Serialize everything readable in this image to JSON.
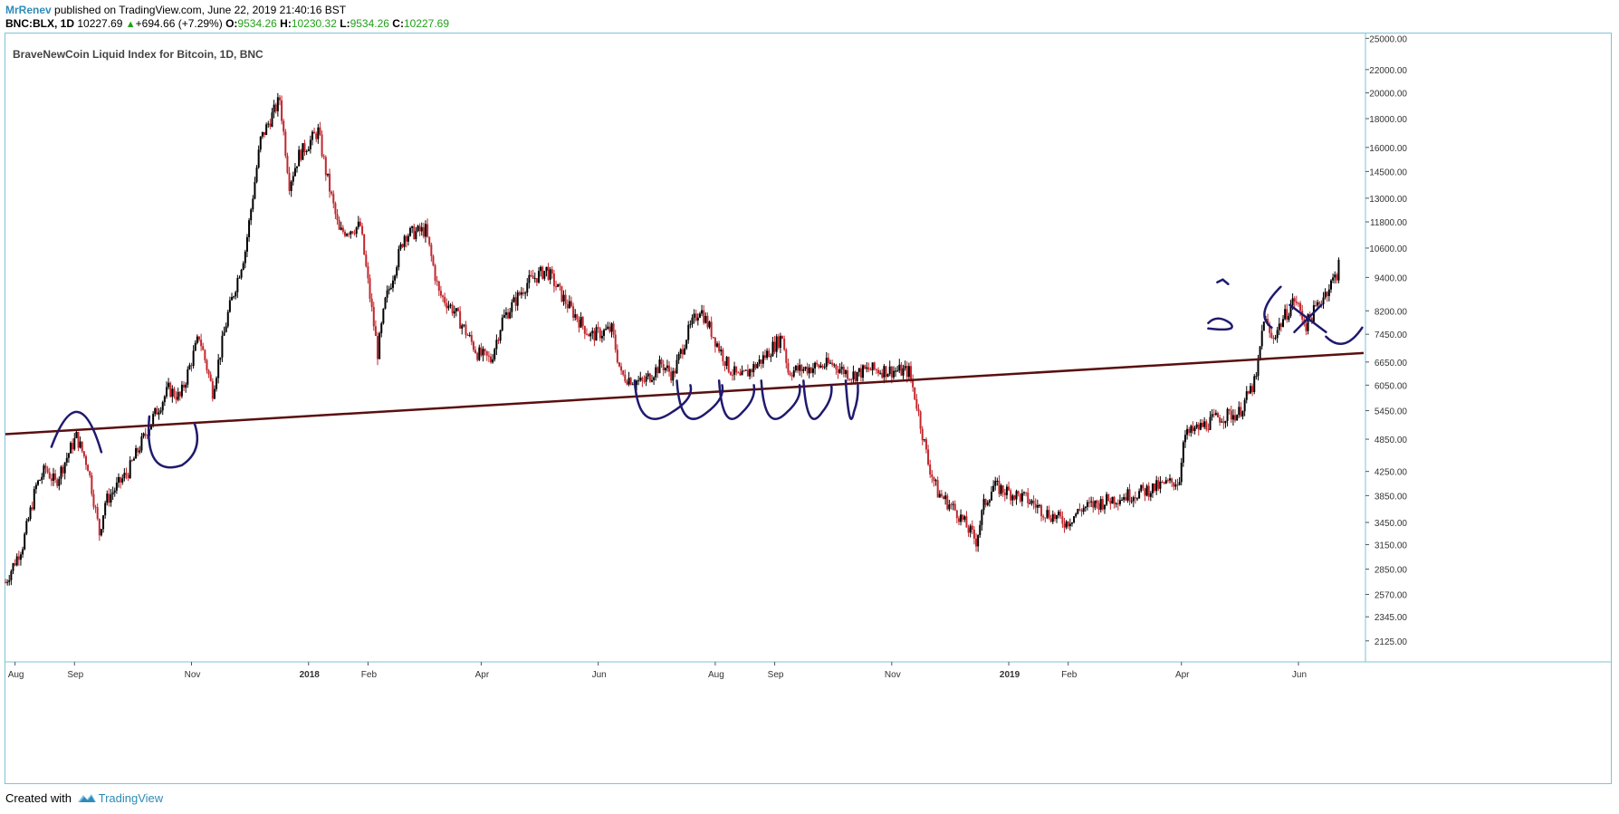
{
  "header": {
    "author": "MrRenev",
    "published": "published on TradingView.com, June 22, 2019 21:40:16 BST",
    "symbol_line_prefix": "BNC:BLX, 1D",
    "last": "10227.69",
    "change": "+694.66 (+7.29%)",
    "o_label": "O:",
    "o_value": "9534.26",
    "h_label": "H:",
    "h_value": "10230.32",
    "l_label": "L:",
    "l_value": "9534.26",
    "c_label": "C:",
    "c_value": "10227.69"
  },
  "footer": {
    "created_with": "Created with",
    "brand": "TradingView"
  },
  "colors": {
    "up": "#000000",
    "down": "#c1272d",
    "trendline": "#5a0f0f",
    "drawing": "#1f1a6e",
    "frame": "#7ec3d8",
    "accent": "#2e8bb8",
    "green": "#22a01a"
  },
  "chart_data": {
    "type": "candlestick",
    "title": "BraveNewCoin Liquid Index for Bitcoin, 1D, BNC",
    "y_scale": "log",
    "ylim": [
      1950,
      25500
    ],
    "y_ticks": [
      "25000.00",
      "22000.00",
      "20000.00",
      "18000.00",
      "16000.00",
      "14500.00",
      "13000.00",
      "11800.00",
      "10600.00",
      "9400.00",
      "8200.00",
      "7450.00",
      "6650.00",
      "6050.00",
      "5450.00",
      "4850.00",
      "4250.00",
      "3850.00",
      "3450.00",
      "3150.00",
      "2850.00",
      "2570.00",
      "2345.00",
      "2125.00"
    ],
    "x_range": [
      "2017-07-27",
      "2019-07-05"
    ],
    "x_ticks": [
      {
        "date": "2017-08-01",
        "label": "Aug",
        "bold": false
      },
      {
        "date": "2017-09-01",
        "label": "Sep",
        "bold": false
      },
      {
        "date": "2017-11-01",
        "label": "Nov",
        "bold": false
      },
      {
        "date": "2018-01-01",
        "label": "2018",
        "bold": true
      },
      {
        "date": "2018-02-01",
        "label": "Feb",
        "bold": false
      },
      {
        "date": "2018-04-01",
        "label": "Apr",
        "bold": false
      },
      {
        "date": "2018-06-01",
        "label": "Jun",
        "bold": false
      },
      {
        "date": "2018-08-01",
        "label": "Aug",
        "bold": false
      },
      {
        "date": "2018-09-01",
        "label": "Sep",
        "bold": false
      },
      {
        "date": "2018-11-01",
        "label": "Nov",
        "bold": false
      },
      {
        "date": "2019-01-01",
        "label": "2019",
        "bold": true
      },
      {
        "date": "2019-02-01",
        "label": "Feb",
        "bold": false
      },
      {
        "date": "2019-04-01",
        "label": "Apr",
        "bold": false
      },
      {
        "date": "2019-06-01",
        "label": "Jun",
        "bold": false
      }
    ],
    "price_series": {
      "name": "BNC:BLX",
      "anchors": [
        [
          "2017-07-27",
          2700
        ],
        [
          "2017-08-05",
          3150
        ],
        [
          "2017-08-12",
          4000
        ],
        [
          "2017-08-17",
          4300
        ],
        [
          "2017-08-22",
          4050
        ],
        [
          "2017-08-31",
          4750
        ],
        [
          "2017-09-02",
          4900
        ],
        [
          "2017-09-08",
          4350
        ],
        [
          "2017-09-14",
          3300
        ],
        [
          "2017-09-17",
          3750
        ],
        [
          "2017-09-29",
          4250
        ],
        [
          "2017-10-12",
          5300
        ],
        [
          "2017-10-20",
          5950
        ],
        [
          "2017-10-26",
          5750
        ],
        [
          "2017-11-05",
          7400
        ],
        [
          "2017-11-12",
          5900
        ],
        [
          "2017-11-20",
          8100
        ],
        [
          "2017-11-29",
          10500
        ],
        [
          "2017-12-07",
          16500
        ],
        [
          "2017-12-17",
          19500
        ],
        [
          "2017-12-22",
          13800
        ],
        [
          "2017-12-27",
          15500
        ],
        [
          "2018-01-06",
          17100
        ],
        [
          "2018-01-10",
          14500
        ],
        [
          "2018-01-17",
          11300
        ],
        [
          "2018-01-28",
          11600
        ],
        [
          "2018-02-06",
          6900
        ],
        [
          "2018-02-10",
          8500
        ],
        [
          "2018-02-20",
          11200
        ],
        [
          "2018-03-03",
          11400
        ],
        [
          "2018-03-10",
          8800
        ],
        [
          "2018-03-18",
          8200
        ],
        [
          "2018-03-30",
          6900
        ],
        [
          "2018-04-06",
          6700
        ],
        [
          "2018-04-12",
          7900
        ],
        [
          "2018-04-25",
          9200
        ],
        [
          "2018-05-05",
          9700
        ],
        [
          "2018-05-15",
          8500
        ],
        [
          "2018-05-28",
          7400
        ],
        [
          "2018-06-08",
          7600
        ],
        [
          "2018-06-13",
          6300
        ],
        [
          "2018-06-24",
          6100
        ],
        [
          "2018-07-04",
          6600
        ],
        [
          "2018-07-10",
          6300
        ],
        [
          "2018-07-17",
          7400
        ],
        [
          "2018-07-24",
          8300
        ],
        [
          "2018-08-08",
          6500
        ],
        [
          "2018-08-14",
          6200
        ],
        [
          "2018-08-25",
          6700
        ],
        [
          "2018-09-05",
          7400
        ],
        [
          "2018-09-08",
          6400
        ],
        [
          "2018-09-20",
          6500
        ],
        [
          "2018-10-01",
          6600
        ],
        [
          "2018-10-11",
          6300
        ],
        [
          "2018-10-20",
          6450
        ],
        [
          "2018-11-10",
          6400
        ],
        [
          "2018-11-14",
          5600
        ],
        [
          "2018-11-20",
          4400
        ],
        [
          "2018-11-25",
          3900
        ],
        [
          "2018-12-05",
          3600
        ],
        [
          "2018-12-15",
          3200
        ],
        [
          "2018-12-19",
          3700
        ],
        [
          "2018-12-24",
          4000
        ],
        [
          "2019-01-10",
          3800
        ],
        [
          "2019-01-20",
          3600
        ],
        [
          "2019-01-31",
          3450
        ],
        [
          "2019-02-08",
          3650
        ],
        [
          "2019-02-24",
          3800
        ],
        [
          "2019-03-10",
          3900
        ],
        [
          "2019-03-31",
          4100
        ],
        [
          "2019-04-02",
          4900
        ],
        [
          "2019-04-20",
          5300
        ],
        [
          "2019-05-01",
          5400
        ],
        [
          "2019-05-10",
          6200
        ],
        [
          "2019-05-14",
          8000
        ],
        [
          "2019-05-18",
          7300
        ],
        [
          "2019-05-30",
          8600
        ],
        [
          "2019-06-05",
          7750
        ],
        [
          "2019-06-16",
          8950
        ],
        [
          "2019-06-21",
          9534.26
        ],
        [
          "2019-06-22",
          10227.69
        ]
      ]
    },
    "trendline": {
      "from": [
        "2017-07-27",
        4950
      ],
      "to": [
        "2019-07-05",
        6900
      ]
    },
    "annotations": [
      {
        "kind": "freehand",
        "label": "arch",
        "from": [
          "2017-08-20",
          4700
        ],
        "to": [
          "2017-09-15",
          4600
        ]
      },
      {
        "kind": "freehand",
        "label": "cup",
        "at": [
          "2017-10-10",
          4800
        ]
      },
      {
        "kind": "freehand",
        "label": "cups",
        "count": 6,
        "from": [
          "2018-06-20",
          6050
        ],
        "to": [
          "2018-10-30",
          6000
        ]
      },
      {
        "kind": "freehand",
        "label": "squiggles",
        "at": [
          "2019-04-15",
          7800
        ]
      }
    ]
  }
}
